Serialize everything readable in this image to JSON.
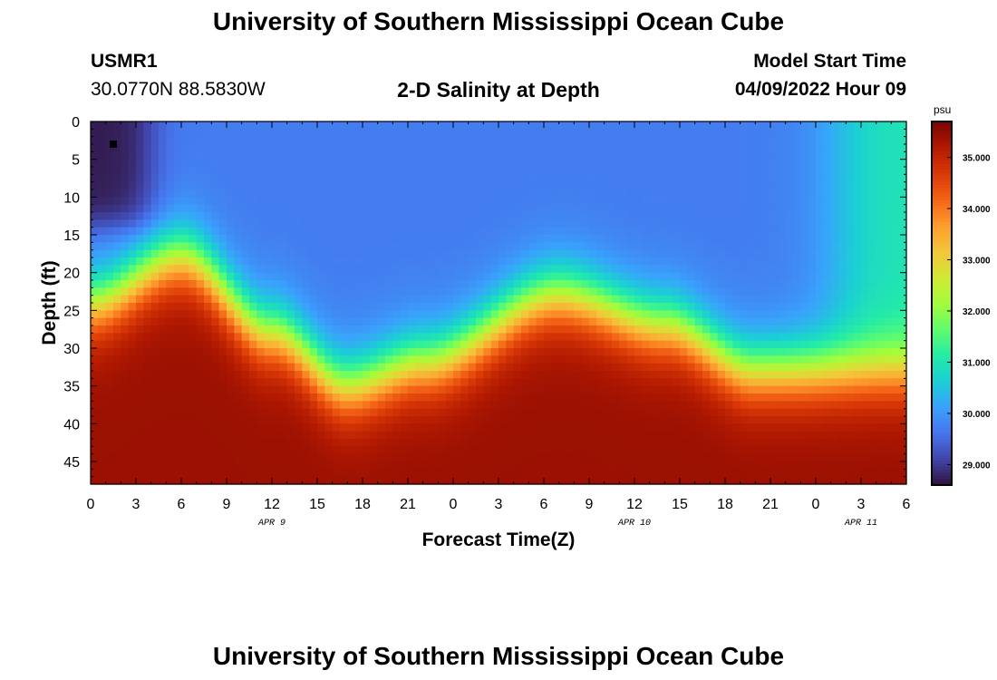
{
  "header": {
    "title": "University of Southern Mississippi Ocean Cube",
    "station_id": "USMR1",
    "coordinates": "30.0770N  88.5830W",
    "plot_title": "2-D Salinity at Depth",
    "model_start_label": "Model Start Time",
    "model_start_value": "04/09/2022 Hour 09"
  },
  "footer": {
    "title": "University of Southern Mississippi Ocean Cube"
  },
  "chart_data": {
    "type": "heatmap",
    "xlabel": "Forecast Time(Z)",
    "ylabel": "Depth (ft)",
    "colorbar_unit": "psu",
    "x_tick_labels": [
      "0",
      "3",
      "6",
      "9",
      "12",
      "15",
      "18",
      "21",
      "0",
      "3",
      "6",
      "9",
      "12",
      "15",
      "18",
      "21",
      "0",
      "3",
      "6"
    ],
    "date_labels": [
      {
        "label": "APR 9",
        "x_index": 12
      },
      {
        "label": "APR 10",
        "x_index": 36
      },
      {
        "label": "APR 11",
        "x_index": 51
      }
    ],
    "y_tick_labels": [
      "0",
      "5",
      "10",
      "15",
      "20",
      "25",
      "30",
      "35",
      "40",
      "45"
    ],
    "y_range": [
      0,
      48
    ],
    "x_range_hours": [
      0,
      54
    ],
    "colorbar_range": [
      28.6,
      35.7
    ],
    "colorbar_ticks": [
      "29.000",
      "30.000",
      "31.000",
      "32.000",
      "33.000",
      "34.000",
      "35.000"
    ],
    "colorbar_tick_values": [
      29,
      30,
      31,
      32,
      33,
      34,
      35
    ],
    "colors": [
      "#30123b",
      "#4145ab",
      "#4675ed",
      "#39a2fc",
      "#1bcfd4",
      "#24eca6",
      "#61fc6c",
      "#a4fc3b",
      "#d1e834",
      "#f3c63a",
      "#fe9b2d",
      "#f36315",
      "#d93806",
      "#b11901",
      "#7a0403"
    ],
    "marker_point": {
      "hour": 1.5,
      "depth": 3
    },
    "profile_description": {
      "surface_fresh_zone": {
        "hours": [
          0,
          4
        ],
        "depth_max": 14,
        "salinity": 28.7
      },
      "upper_layer_salinity": 29.7,
      "late_upper_layer_salinity": 31.0,
      "bottom_salinity": 35.4
    },
    "halocline_depth_ft": [
      {
        "hour": 0,
        "depth": 24
      },
      {
        "hour": 6,
        "depth": 18
      },
      {
        "hour": 12,
        "depth": 28
      },
      {
        "hour": 17,
        "depth": 35
      },
      {
        "hour": 22,
        "depth": 32
      },
      {
        "hour": 31,
        "depth": 23
      },
      {
        "hour": 38,
        "depth": 27
      },
      {
        "hour": 44,
        "depth": 33
      },
      {
        "hour": 48,
        "depth": 33
      },
      {
        "hour": 54,
        "depth": 33
      }
    ]
  }
}
